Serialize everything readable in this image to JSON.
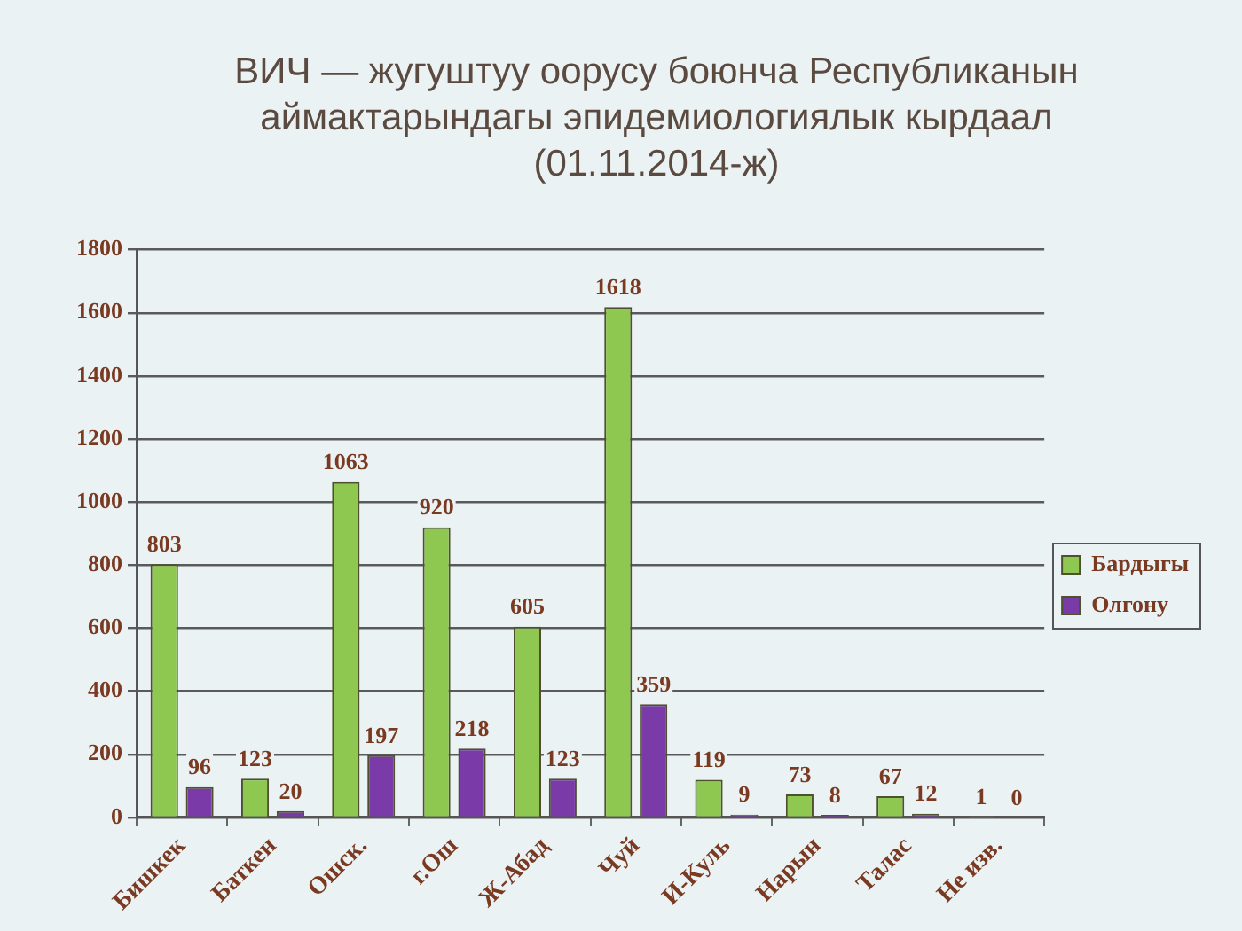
{
  "chart_data": {
    "type": "bar",
    "title": "ВИЧ — жугуштуу оорусу боюнча Республиканын аймактарындагы эпидемиологиялык кырдаал",
    "subtitle": "(01.11.2014-ж)",
    "categories": [
      "Бишкек",
      "Баткен",
      "Ошск.",
      "г.Ош",
      "Ж-Абад",
      "Чуй",
      "И-Куль",
      "Нарын",
      "Талас",
      "Не изв."
    ],
    "series": [
      {
        "name": "Бардыгы",
        "color": "#8fc850",
        "values": [
          803,
          123,
          1063,
          920,
          605,
          1618,
          119,
          73,
          67,
          1
        ]
      },
      {
        "name": "Олгону",
        "color": "#7a3aa8",
        "values": [
          96,
          20,
          197,
          218,
          123,
          359,
          9,
          8,
          12,
          0
        ]
      }
    ],
    "ylim": [
      0,
      1800
    ],
    "yticks": [
      0,
      200,
      400,
      600,
      800,
      1000,
      1200,
      1400,
      1600,
      1800
    ],
    "grid": "y",
    "legend": "right",
    "data_labels": true
  }
}
